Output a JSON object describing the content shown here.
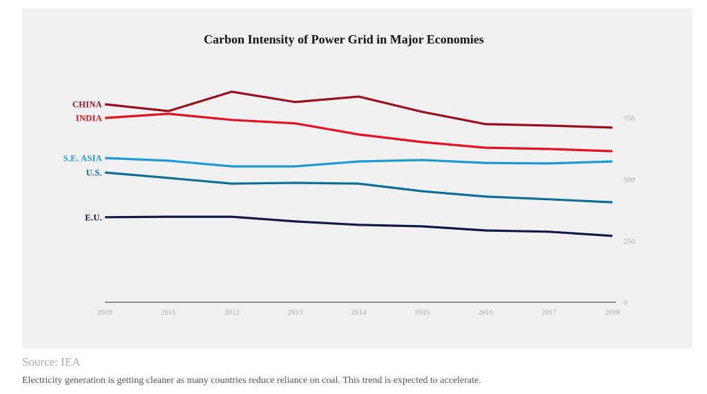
{
  "chart_data": {
    "type": "line",
    "title": "Carbon Intensity of Power Grid in Major Economies",
    "xlabel": "",
    "ylabel": "",
    "x": [
      "2010",
      "2011",
      "2012",
      "2013",
      "2014",
      "2015",
      "2016",
      "2017",
      "2018"
    ],
    "ylim": [
      0,
      750
    ],
    "y_ticks": [
      "0",
      "250",
      "500",
      "750"
    ],
    "y_axis_side": "right",
    "grid": false,
    "legend": "inline-left",
    "series": [
      {
        "name": "CHINA",
        "color": "#9b0d1a",
        "values": [
          806,
          778,
          857,
          815,
          837,
          775,
          725,
          719,
          711
        ]
      },
      {
        "name": "INDIA",
        "color": "#e8101e",
        "values": [
          750,
          767,
          742,
          728,
          683,
          652,
          629,
          624,
          615
        ]
      },
      {
        "name": "S.E. ASIA",
        "color": "#1a9ad6",
        "values": [
          587,
          576,
          553,
          553,
          573,
          579,
          567,
          565,
          573
        ]
      },
      {
        "name": "U.S.",
        "color": "#0f6f9a",
        "values": [
          528,
          506,
          483,
          486,
          483,
          452,
          430,
          419,
          407
        ]
      },
      {
        "name": "E.U.",
        "color": "#14154a",
        "values": [
          346,
          348,
          348,
          329,
          315,
          309,
          292,
          287,
          270
        ]
      }
    ]
  },
  "footer": {
    "source": "Source: IEA",
    "caption": "Electricity generation is getting cleaner as many countries reduce reliance on coal. This trend is expected to accelerate."
  }
}
